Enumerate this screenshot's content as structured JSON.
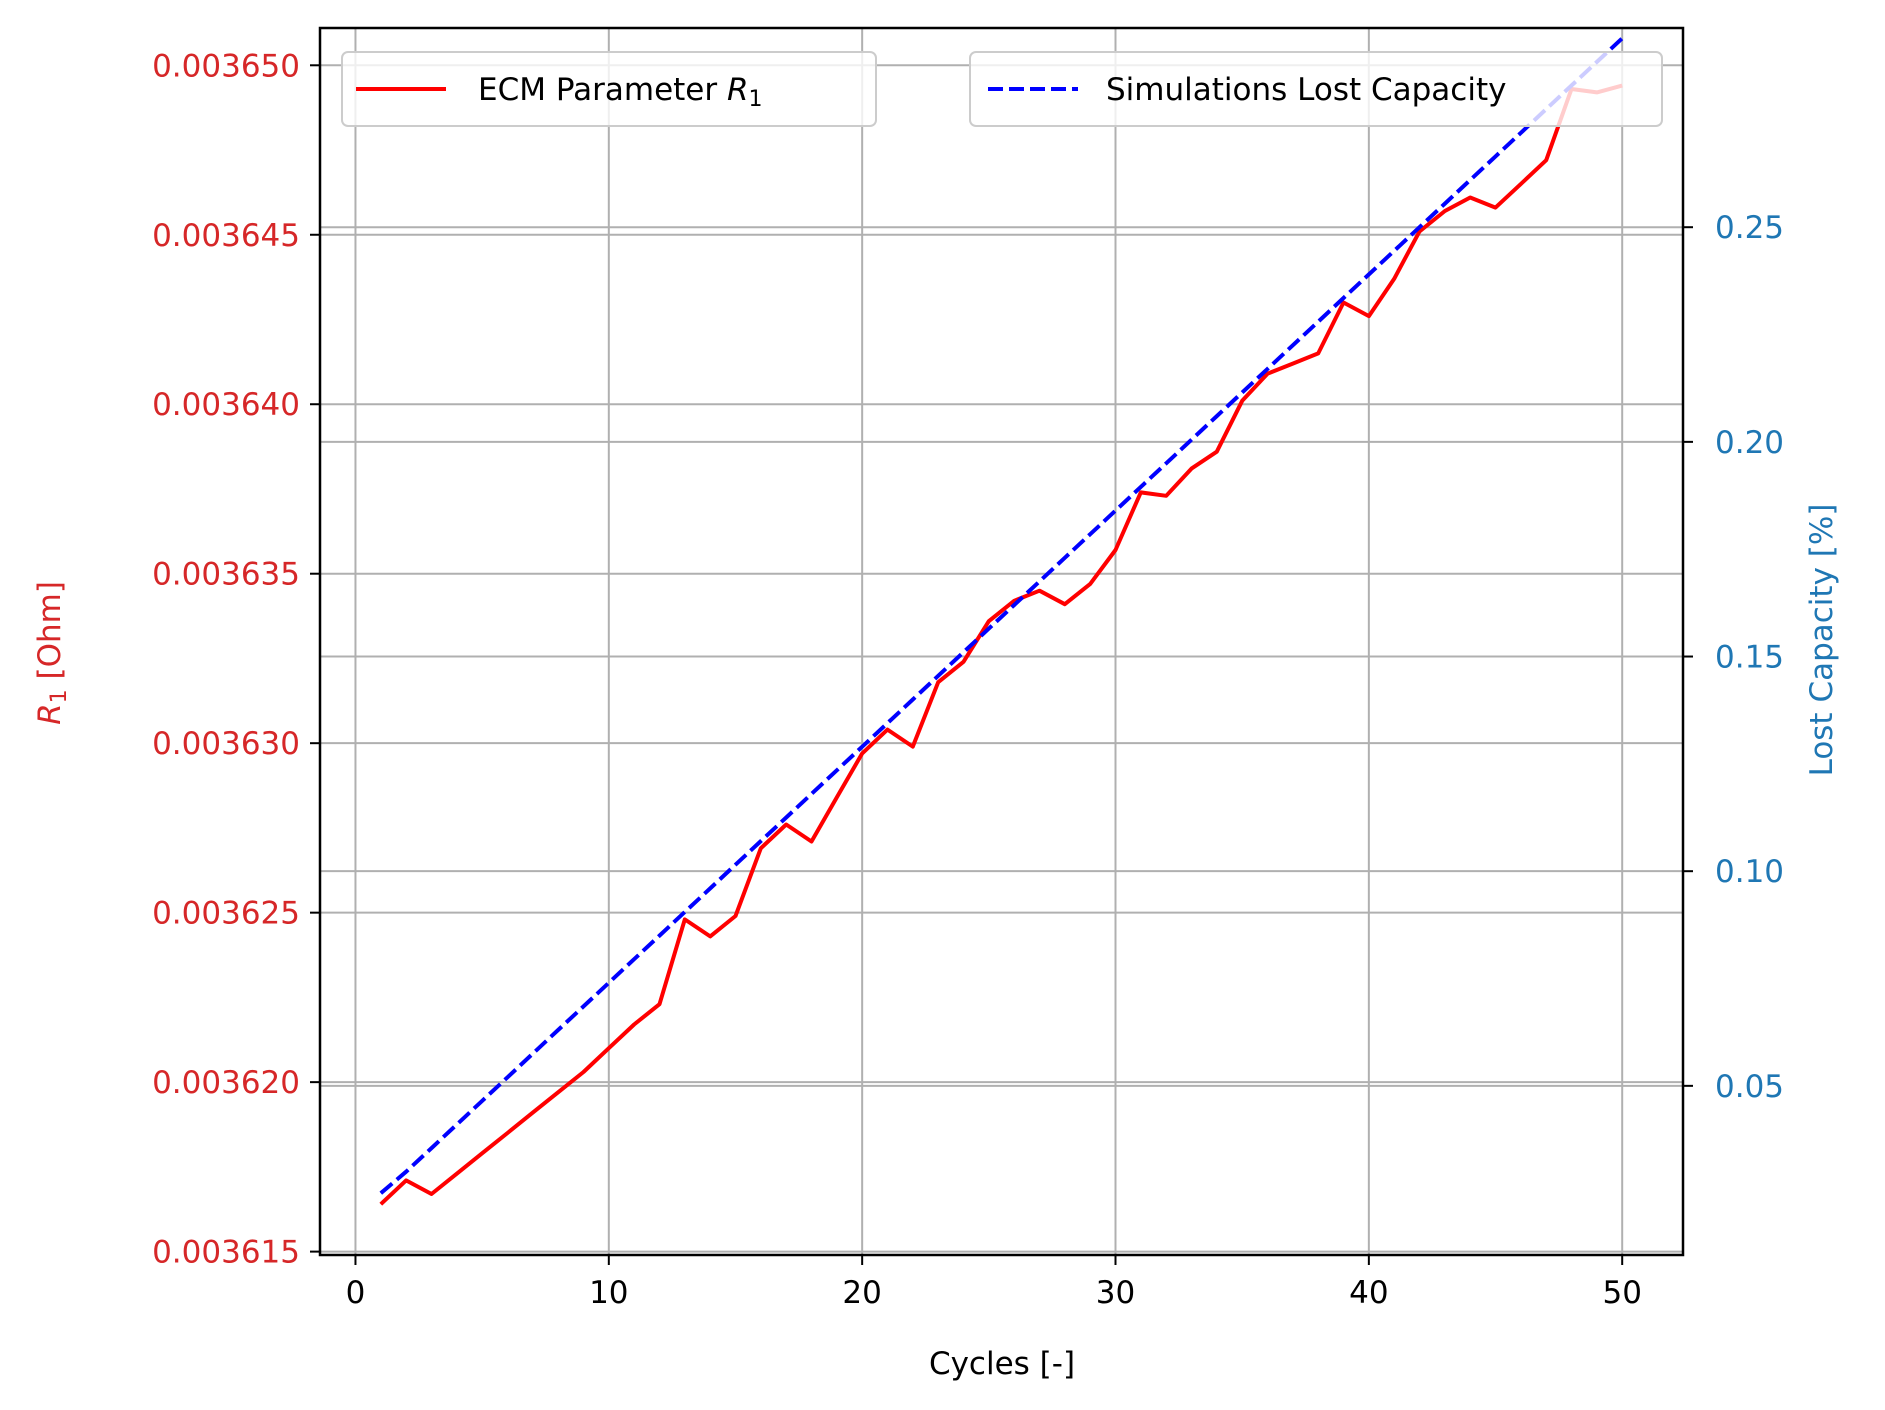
{
  "chart_data": {
    "type": "line",
    "xlabel": "Cycles [-]",
    "ylabel_left_italic": "R",
    "ylabel_left_sub": "1",
    "ylabel_left_rest": " [Ohm]",
    "ylabel_right": "Lost Capacity [%]",
    "xlim": [
      -1.4,
      52.4
    ],
    "ylim_left": [
      0.0036149,
      0.0036511
    ],
    "ylim_right": [
      0.0106,
      0.2964
    ],
    "x_ticks": [
      0,
      10,
      20,
      30,
      40,
      50
    ],
    "x_tick_labels": [
      "0",
      "10",
      "20",
      "30",
      "40",
      "50"
    ],
    "y_left_ticks": [
      0.003615,
      0.00362,
      0.003625,
      0.00363,
      0.003635,
      0.00364,
      0.003645,
      0.00365
    ],
    "y_left_tick_labels": [
      "0.003615",
      "0.003620",
      "0.003625",
      "0.003630",
      "0.003635",
      "0.003640",
      "0.003645",
      "0.003650"
    ],
    "y_right_ticks": [
      0.05,
      0.1,
      0.15,
      0.2,
      0.25
    ],
    "y_right_tick_labels": [
      "0.05",
      "0.10",
      "0.15",
      "0.20",
      "0.25"
    ],
    "grid": true,
    "colors": {
      "left_axis": "#d62728",
      "right_axis": "#1f77b4",
      "series_r1": "#ff0000",
      "series_capacity": "#0000ff",
      "grid": "#b0b0b0"
    },
    "x": [
      1,
      2,
      3,
      4,
      5,
      6,
      7,
      8,
      9,
      10,
      11,
      12,
      13,
      14,
      15,
      16,
      17,
      18,
      19,
      20,
      21,
      22,
      23,
      24,
      25,
      26,
      27,
      28,
      29,
      30,
      31,
      32,
      33,
      34,
      35,
      36,
      37,
      38,
      39,
      40,
      41,
      42,
      43,
      44,
      45,
      46,
      47,
      48,
      49,
      50
    ],
    "series": [
      {
        "name_main": "ECM Parameter ",
        "name_italic": "R",
        "name_sub": "1",
        "axis": "left",
        "style": "solid",
        "values": [
          0.0036164,
          0.0036171,
          0.0036167,
          0.0036173,
          0.0036179,
          0.0036185,
          0.0036191,
          0.0036197,
          0.0036203,
          0.003621,
          0.0036217,
          0.0036223,
          0.0036248,
          0.0036243,
          0.0036249,
          0.0036269,
          0.0036276,
          0.0036271,
          0.0036284,
          0.0036297,
          0.0036304,
          0.0036299,
          0.0036318,
          0.0036324,
          0.0036336,
          0.0036342,
          0.0036345,
          0.0036341,
          0.0036347,
          0.0036357,
          0.0036374,
          0.0036373,
          0.0036381,
          0.0036386,
          0.0036401,
          0.0036409,
          0.0036412,
          0.0036415,
          0.003643,
          0.0036426,
          0.0036437,
          0.0036451,
          0.0036457,
          0.0036461,
          0.0036458,
          0.0036465,
          0.0036472,
          0.0036493,
          0.0036492,
          0.0036494
        ]
      },
      {
        "name": "Simulations Lost Capacity",
        "axis": "right",
        "style": "dashed",
        "values": [
          0.025,
          0.03,
          0.0355,
          0.041,
          0.0465,
          0.052,
          0.0575,
          0.063,
          0.0685,
          0.074,
          0.0795,
          0.085,
          0.0905,
          0.096,
          0.1015,
          0.107,
          0.1125,
          0.118,
          0.1235,
          0.129,
          0.1345,
          0.14,
          0.1455,
          0.151,
          0.1565,
          0.162,
          0.1675,
          0.173,
          0.1785,
          0.184,
          0.1895,
          0.195,
          0.2005,
          0.206,
          0.2115,
          0.217,
          0.2225,
          0.228,
          0.2335,
          0.239,
          0.2445,
          0.25,
          0.2555,
          0.261,
          0.2665,
          0.272,
          0.2775,
          0.283,
          0.2885,
          0.294
        ]
      }
    ]
  }
}
